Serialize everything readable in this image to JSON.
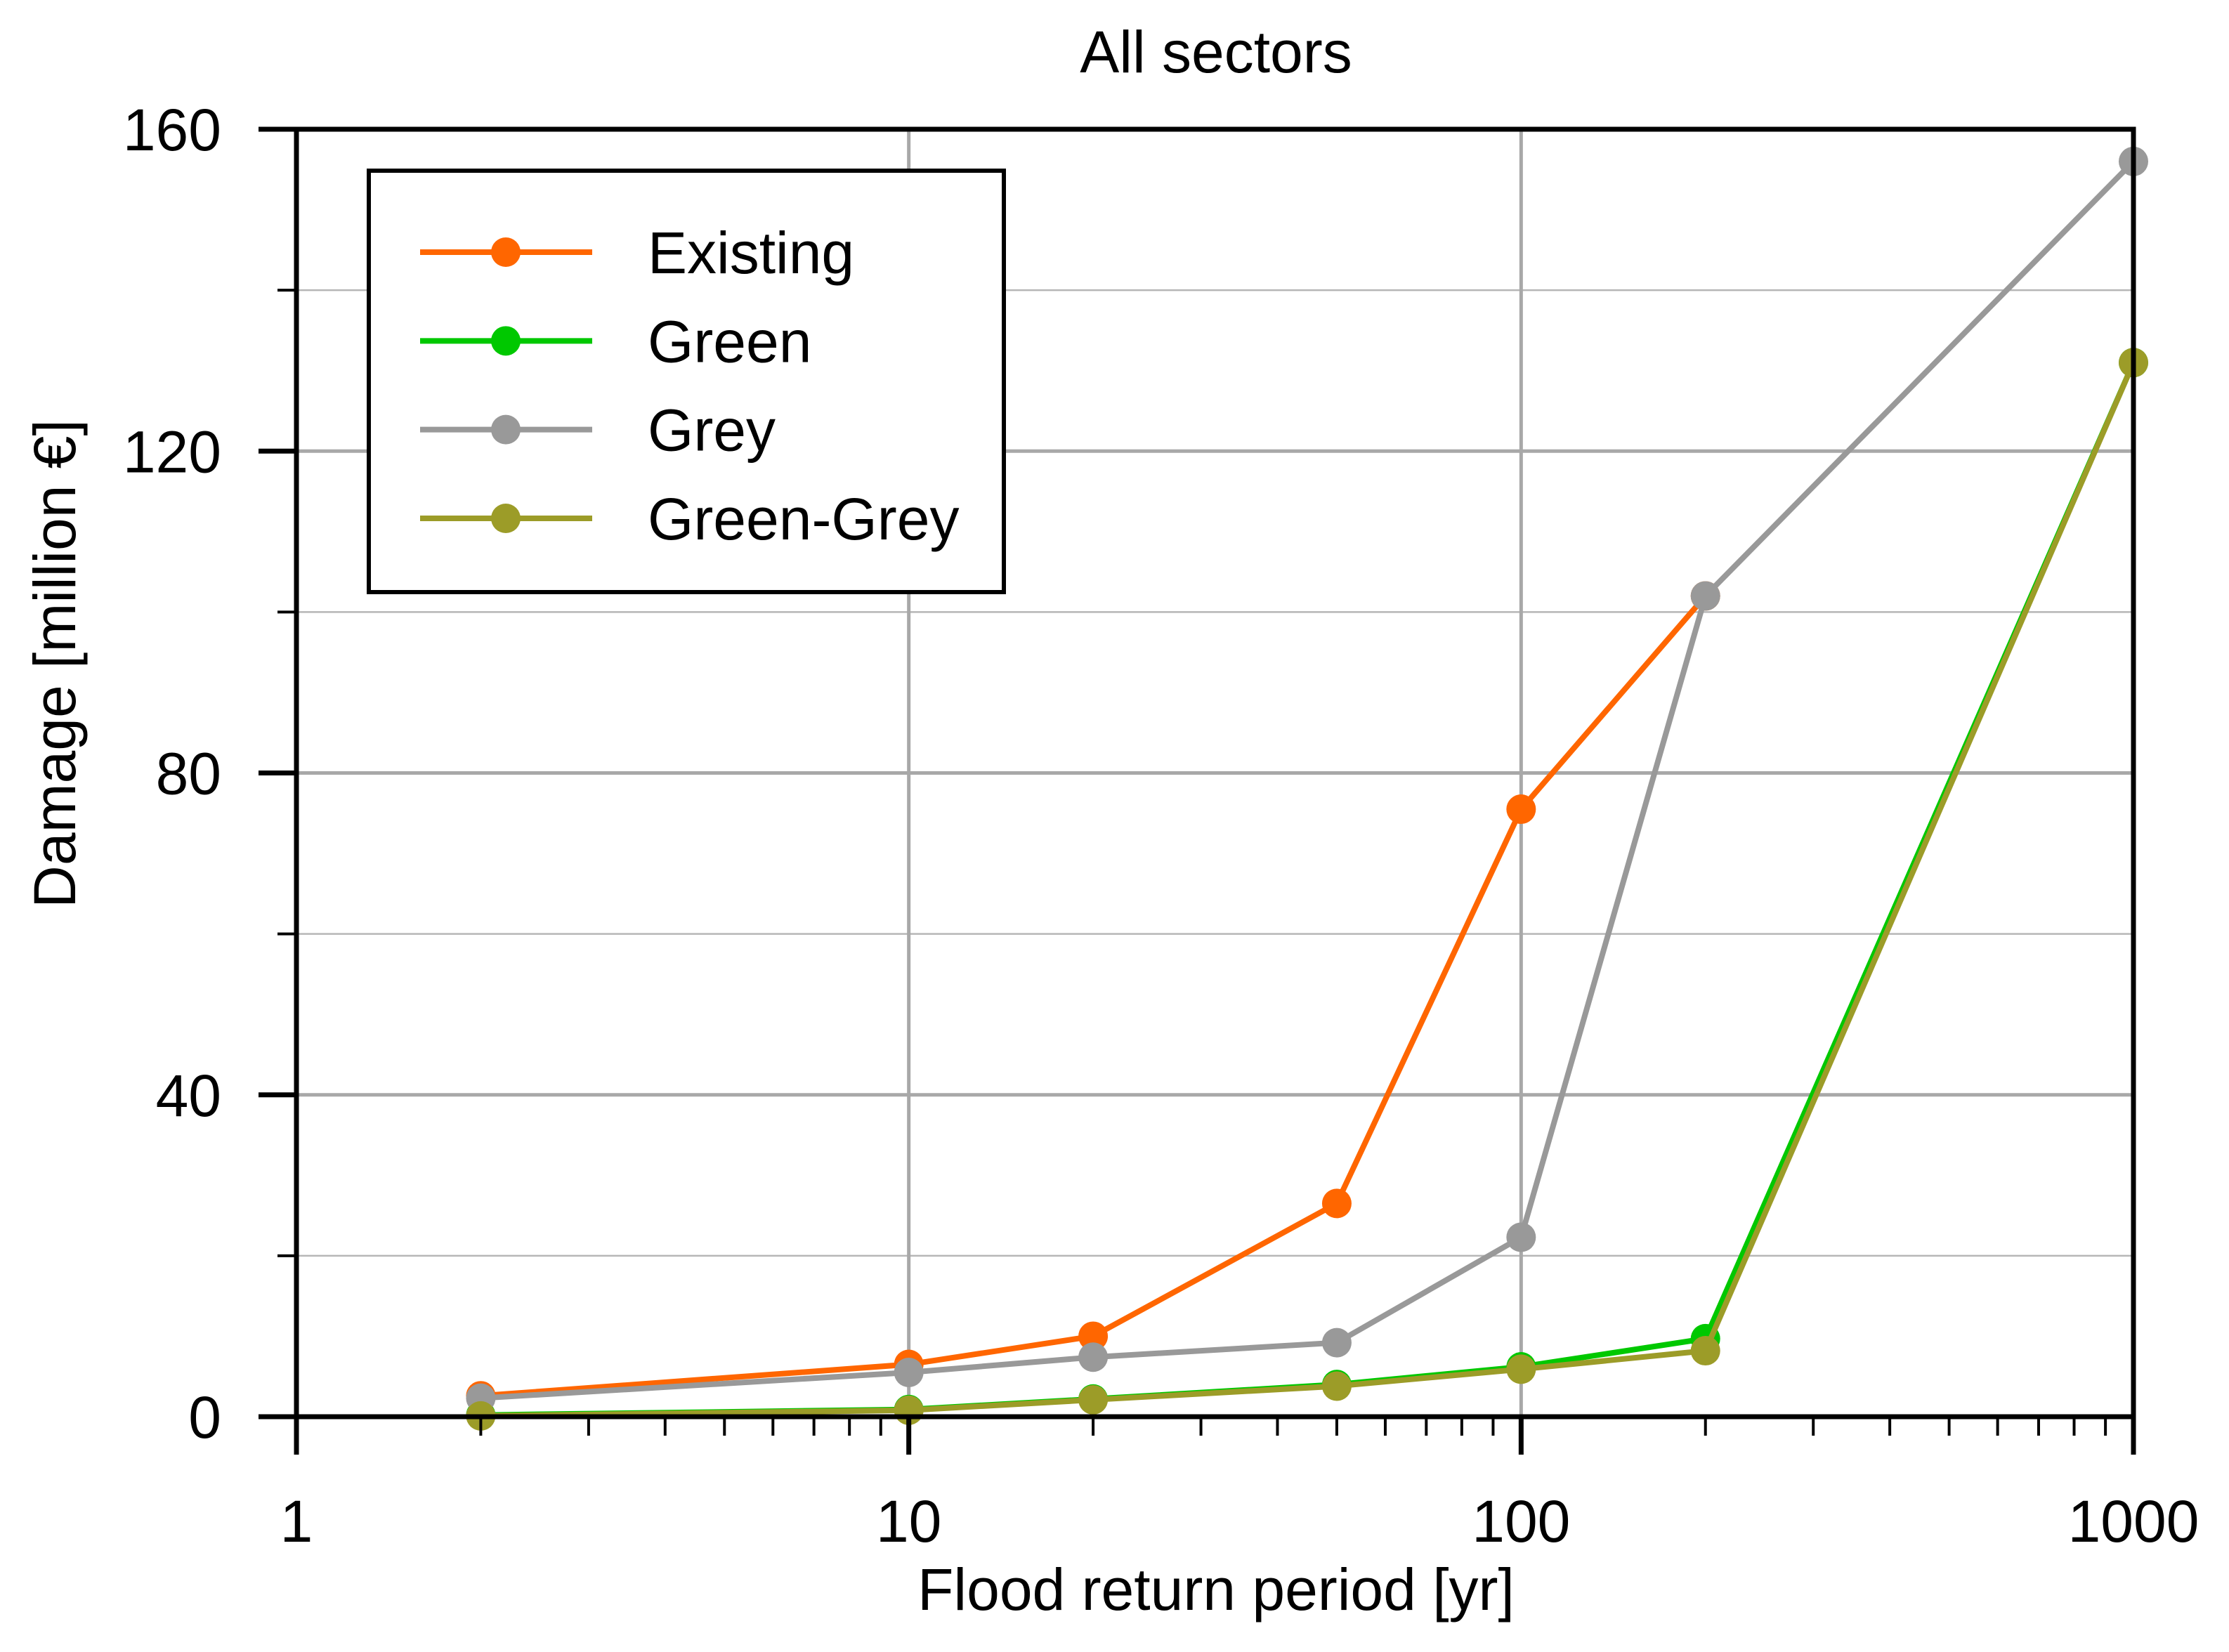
{
  "title": "All sectors",
  "chart_data": {
    "type": "line",
    "title": "All sectors",
    "xlabel": "Flood return period [yr]",
    "ylabel": "Damage [million €]",
    "x_scale": "log",
    "xlim": [
      1,
      1000
    ],
    "ylim": [
      0,
      160
    ],
    "x_major_ticks": [
      1,
      10,
      100,
      1000
    ],
    "x_tick_labels": [
      "1",
      "10",
      "100",
      "1000"
    ],
    "x_minor_ticks": [
      2,
      3,
      4,
      5,
      6,
      7,
      8,
      9,
      20,
      30,
      40,
      50,
      60,
      70,
      80,
      90,
      200,
      300,
      400,
      500,
      600,
      700,
      800,
      900
    ],
    "y_major_ticks": [
      0,
      40,
      80,
      120,
      160
    ],
    "y_tick_labels": [
      "0",
      "40",
      "80",
      "120",
      "160"
    ],
    "y_minor_ticks": [
      20,
      60,
      100,
      140
    ],
    "grid": {
      "vertical_major_at": [
        10,
        100
      ],
      "horizontal_major_at": [
        40,
        80,
        120
      ],
      "horizontal_minor_at": [
        20,
        60,
        100,
        140
      ]
    },
    "legend_position": "upper-left",
    "legend_entries": [
      "Existing",
      "Green",
      "Grey",
      "Green-Grey"
    ],
    "series": [
      {
        "name": "Existing",
        "color": "#FF6600",
        "x": [
          2,
          10,
          20,
          50,
          100,
          200
        ],
        "values": [
          2.6,
          6.5,
          10.0,
          26.5,
          75.5,
          102.0
        ]
      },
      {
        "name": "Green",
        "color": "#00C800",
        "x": [
          2,
          10,
          20,
          50,
          100,
          200,
          1000
        ],
        "values": [
          0.2,
          0.9,
          2.2,
          4.0,
          6.2,
          9.7,
          131.0
        ]
      },
      {
        "name": "Grey",
        "color": "#999999",
        "x": [
          2,
          10,
          20,
          50,
          100,
          200,
          1000
        ],
        "values": [
          2.3,
          5.5,
          7.4,
          9.2,
          22.3,
          102.0,
          156.0
        ]
      },
      {
        "name": "Green-Grey",
        "color": "#9C9C28",
        "x": [
          2,
          10,
          20,
          50,
          100,
          200,
          1000
        ],
        "values": [
          0.1,
          0.8,
          2.1,
          3.8,
          5.9,
          8.2,
          131.0
        ]
      }
    ],
    "colors": {
      "axis": "#000000",
      "grid_major": "#A8A8A8",
      "grid_minor": "#B6B6B6",
      "background": "#FFFFFF",
      "text": "#000000"
    }
  }
}
